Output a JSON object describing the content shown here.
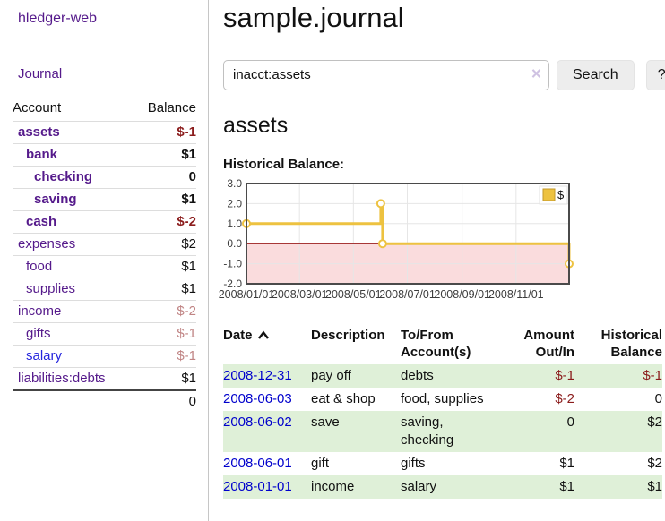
{
  "sidebar": {
    "brand": "hledger-web",
    "nav_journal": "Journal",
    "header": {
      "account": "Account",
      "balance": "Balance"
    },
    "accounts": [
      {
        "name": "assets",
        "indent": 1,
        "emph": true,
        "link_style": "purple",
        "balance": "$-1",
        "balance_style": "neg-strong"
      },
      {
        "name": "bank",
        "indent": 2,
        "emph": true,
        "link_style": "purple",
        "balance": "$1",
        "balance_style": "pos"
      },
      {
        "name": "checking",
        "indent": 3,
        "emph": true,
        "link_style": "purple",
        "balance": "0",
        "balance_style": "pos"
      },
      {
        "name": "saving",
        "indent": 3,
        "emph": true,
        "link_style": "purple",
        "balance": "$1",
        "balance_style": "pos"
      },
      {
        "name": "cash",
        "indent": 2,
        "emph": true,
        "link_style": "purple",
        "balance": "$-2",
        "balance_style": "neg-strong"
      },
      {
        "name": "expenses",
        "indent": 1,
        "emph": false,
        "link_style": "purple",
        "balance": "$2",
        "balance_style": "pos"
      },
      {
        "name": "food",
        "indent": 2,
        "emph": false,
        "link_style": "purple",
        "balance": "$1",
        "balance_style": "pos"
      },
      {
        "name": "supplies",
        "indent": 2,
        "emph": false,
        "link_style": "purple",
        "balance": "$1",
        "balance_style": "pos"
      },
      {
        "name": "income",
        "indent": 1,
        "emph": false,
        "link_style": "purple",
        "balance": "$-2",
        "balance_style": "neg-soft"
      },
      {
        "name": "gifts",
        "indent": 2,
        "emph": false,
        "link_style": "purple",
        "balance": "$-1",
        "balance_style": "neg-soft"
      },
      {
        "name": "salary",
        "indent": 2,
        "emph": false,
        "link_style": "blue",
        "balance": "$-1",
        "balance_style": "neg-soft"
      },
      {
        "name": "liabilities:debts",
        "indent": 1,
        "emph": false,
        "link_style": "purple",
        "balance": "$1",
        "balance_style": "pos"
      }
    ],
    "total": "0"
  },
  "header": {
    "title": "sample.journal"
  },
  "search": {
    "query": "inacct:assets",
    "clear_icon": "×",
    "button": "Search",
    "help_button": "?"
  },
  "account_page": {
    "heading": "assets",
    "chart_label": "Historical Balance:"
  },
  "chart_data": {
    "type": "line",
    "title": "Historical Balance:",
    "step": true,
    "series": [
      {
        "name": "$",
        "color": "#edc240",
        "points": [
          {
            "x": "2008-01-01",
            "y": 1
          },
          {
            "x": "2008-06-01",
            "y": 2
          },
          {
            "x": "2008-06-03",
            "y": 0
          },
          {
            "x": "2008-12-31",
            "y": -1
          }
        ]
      }
    ],
    "xlim": [
      "2008-01-01",
      "2008-12-31"
    ],
    "ylim": [
      -2,
      3
    ],
    "yticks": [
      3.0,
      2.0,
      1.0,
      0.0,
      -1.0,
      -2.0
    ],
    "xticks": [
      "2008/01/01",
      "2008/03/01",
      "2008/05/01",
      "2008/07/01",
      "2008/09/01",
      "2008/11/01"
    ],
    "legend": {
      "label": "$",
      "position": "top-right"
    },
    "grid": true,
    "negative_region_color": "#fadcdd",
    "zero_line_color": "#8b0000",
    "border_color": "#4a4a4a"
  },
  "register": {
    "columns": {
      "date": "Date",
      "description": "Description",
      "accounts": "To/From Account(s)",
      "amount": "Amount Out/In",
      "balance": "Historical Balance"
    },
    "rows": [
      {
        "date": "2008-12-31",
        "description": "pay off",
        "accounts": "debts",
        "amount": "$-1",
        "amount_neg": true,
        "balance": "$-1",
        "balance_neg": true
      },
      {
        "date": "2008-06-03",
        "description": "eat & shop",
        "accounts": "food, supplies",
        "amount": "$-2",
        "amount_neg": true,
        "balance": "0",
        "balance_neg": false
      },
      {
        "date": "2008-06-02",
        "description": "save",
        "accounts": "saving, checking",
        "amount": "0",
        "amount_neg": false,
        "balance": "$2",
        "balance_neg": false
      },
      {
        "date": "2008-06-01",
        "description": "gift",
        "accounts": "gifts",
        "amount": "$1",
        "amount_neg": false,
        "balance": "$2",
        "balance_neg": false
      },
      {
        "date": "2008-01-01",
        "description": "income",
        "accounts": "salary",
        "amount": "$1",
        "amount_neg": false,
        "balance": "$1",
        "balance_neg": false
      }
    ]
  },
  "colors": {
    "link_purple": "#551a8b",
    "link_blue": "#2323dd",
    "date_link_blue": "#0000cc",
    "negative_strong": "#8b1c1c",
    "negative_soft": "#c08484",
    "row_stripe_green": "#dff0d8",
    "chart_series_yellow": "#edc240",
    "chart_negative_region": "#fadcdd",
    "chart_zero_line": "#8b0000"
  }
}
